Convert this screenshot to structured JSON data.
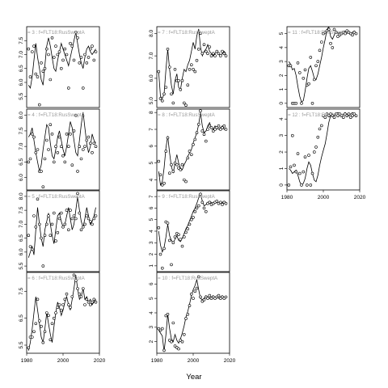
{
  "chart_data": {
    "type": "scatter",
    "xlabel": "Year",
    "xlim": [
      1980,
      2020
    ],
    "x_ticks": [
      "1980",
      "2000",
      "2020"
    ],
    "years": [
      1981,
      1982,
      1983,
      1984,
      1985,
      1986,
      1987,
      1988,
      1989,
      1990,
      1991,
      1992,
      1993,
      1994,
      1995,
      1996,
      1997,
      1998,
      1999,
      2000,
      2001,
      2002,
      2003,
      2004,
      2005,
      2006,
      2007,
      2008,
      2009,
      2010,
      2011,
      2012,
      2013,
      2014,
      2015,
      2016,
      2017,
      2018
    ],
    "panels": [
      {
        "label": "= 3 : f=FLT18:RusSweptA",
        "ylim": [
          5.1,
          8.0
        ],
        "yticks": [
          "5.5",
          "6.0",
          "6.5",
          "7.0",
          "7.5"
        ],
        "fit": [
          5.9,
          5.8,
          6.2,
          6.8,
          7.4,
          6.9,
          6.5,
          6.1,
          5.9,
          6.6,
          7.3,
          7.6,
          7.3,
          6.9,
          6.5,
          6.4,
          6.8,
          7.1,
          7.4,
          7.2,
          7.0,
          6.8,
          6.6,
          6.9,
          7.2,
          7.5,
          7.8,
          7.4,
          7.0,
          6.7,
          6.5,
          6.9,
          7.2,
          7.3,
          7.1,
          7.0,
          7.1,
          7.2
        ],
        "obs": [
          7.2,
          6.2,
          7.1,
          7.3,
          6.3,
          6.2,
          5.2,
          6.7,
          6.4,
          6.5,
          7.2,
          7.0,
          6.1,
          7.6,
          6.9,
          7.3,
          7.0,
          7.1,
          6.5,
          6.8,
          7.2,
          7.0,
          5.8,
          7.4,
          7.3,
          6.8,
          7.8,
          7.6,
          6.7,
          6.9,
          5.8,
          7.0,
          6.7,
          6.9,
          7.2,
          7.3,
          6.8,
          7.1
        ]
      },
      {
        "label": "= 4 : f=FLT18:RusSweptA",
        "ylim": [
          5.6,
          8.2
        ],
        "yticks": [
          "6.0",
          "6.5",
          "7.0",
          "7.5",
          "8.0"
        ],
        "fit": [
          7.3,
          7.4,
          7.6,
          7.2,
          6.8,
          6.5,
          6.2,
          6.4,
          6.9,
          7.3,
          7.7,
          7.6,
          7.1,
          6.7,
          6.6,
          6.9,
          7.3,
          7.5,
          7.2,
          6.9,
          6.7,
          7.0,
          7.4,
          7.8,
          7.6,
          7.2,
          6.8,
          6.7,
          7.2,
          7.7,
          8.1,
          7.6,
          7.1,
          6.8,
          7.0,
          7.4,
          7.2,
          7.1
        ],
        "obs": [
          6.5,
          6.6,
          7.4,
          7.3,
          6.8,
          6.9,
          6.2,
          6.2,
          5.7,
          6.6,
          7.2,
          6.9,
          7.7,
          7.4,
          6.5,
          7.0,
          6.8,
          7.3,
          7.0,
          6.7,
          6.5,
          7.4,
          7.0,
          7.4,
          6.4,
          7.5,
          8.0,
          6.2,
          7.0,
          6.6,
          6.9,
          7.0,
          7.2,
          7.3,
          7.1,
          6.8,
          7.1,
          7.0
        ]
      },
      {
        "label": "= 5 : f=FLT18:RusSweptA",
        "ylim": [
          5.3,
          8.2
        ],
        "yticks": [
          "5.5",
          "6.0",
          "6.5",
          "7.0",
          "7.5",
          "8.0"
        ],
        "fit": [
          5.8,
          6.0,
          6.2,
          5.9,
          6.8,
          7.6,
          7.0,
          6.5,
          6.2,
          6.8,
          7.1,
          7.4,
          7.0,
          6.6,
          6.3,
          6.8,
          7.3,
          7.4,
          7.1,
          6.9,
          7.0,
          7.3,
          7.6,
          7.2,
          6.8,
          7.0,
          7.5,
          8.0,
          7.5,
          7.1,
          6.9,
          7.2,
          7.6,
          7.3,
          7.0,
          7.1,
          7.3,
          7.6
        ],
        "obs": [
          6.6,
          6.2,
          6.1,
          7.3,
          6.9,
          7.9,
          7.0,
          6.5,
          5.5,
          6.6,
          7.0,
          7.3,
          6.6,
          7.0,
          7.4,
          6.4,
          6.7,
          7.2,
          7.4,
          6.9,
          7.0,
          7.5,
          6.8,
          7.5,
          7.2,
          7.3,
          7.2,
          8.1,
          7.4,
          6.8,
          6.9,
          7.0,
          7.3,
          7.2,
          7.1,
          7.0,
          7.2,
          7.3
        ]
      },
      {
        "label": "= 6 : f=FLT18:RusSweptA",
        "ylim": [
          5.2,
          8.2
        ],
        "yticks": [
          "5.5",
          "6.5",
          "7.5"
        ],
        "fit": [
          5.3,
          5.6,
          6.1,
          6.7,
          7.3,
          6.8,
          6.3,
          5.8,
          5.6,
          6.1,
          6.7,
          6.3,
          5.9,
          5.6,
          6.2,
          6.7,
          7.1,
          6.9,
          6.6,
          6.8,
          7.1,
          7.3,
          7.0,
          6.8,
          7.2,
          7.6,
          8.1,
          7.6,
          7.2,
          7.3,
          7.6,
          7.2,
          7.3,
          7.1,
          7.2,
          7.0,
          7.1,
          7.2
        ],
        "obs": [
          5.4,
          5.8,
          5.8,
          6.0,
          6.3,
          7.2,
          6.4,
          6.2,
          5.6,
          6.0,
          6.7,
          6.6,
          5.7,
          6.3,
          6.5,
          6.7,
          6.9,
          7.0,
          6.8,
          7.0,
          7.2,
          7.4,
          7.0,
          6.9,
          7.3,
          8.1,
          7.9,
          7.6,
          7.4,
          7.3,
          7.6,
          7.0,
          7.2,
          7.1,
          7.0,
          7.1,
          7.2,
          7.1
        ]
      },
      {
        "label": "= 7 : f=FLT18:RusSweptA",
        "ylim": [
          4.7,
          8.3
        ],
        "yticks": [
          "5.0",
          "6.0",
          "7.0",
          "8.0"
        ],
        "fit": [
          6.3,
          5.2,
          5.1,
          5.3,
          6.4,
          7.3,
          6.4,
          5.7,
          5.3,
          5.9,
          6.2,
          5.6,
          5.5,
          6.0,
          6.4,
          6.3,
          6.6,
          6.8,
          7.2,
          7.6,
          7.3,
          7.9,
          8.2,
          7.4,
          7.0,
          7.2,
          7.3,
          7.5,
          7.2,
          7.1,
          7.0,
          7.1,
          7.2,
          7.1,
          7.0,
          7.1,
          7.2,
          7.1
        ],
        "obs": [
          6.3,
          5.1,
          5.0,
          5.3,
          5.6,
          7.3,
          6.5,
          5.3,
          4.9,
          6.4,
          5.9,
          5.9,
          5.5,
          5.9,
          4.9,
          4.8,
          5.7,
          6.4,
          6.6,
          6.4,
          6.3,
          6.8,
          7.3,
          8.0,
          7.1,
          7.5,
          7.2,
          7.1,
          7.4,
          7.0,
          7.1,
          7.0,
          7.2,
          7.1,
          7.0,
          7.2,
          7.1,
          7.0
        ]
      },
      {
        "label": "= 8 : f=FLT18:RusSweptA",
        "ylim": [
          3.4,
          8.2
        ],
        "yticks": [
          "4",
          "5",
          "6",
          "7",
          "8"
        ],
        "fit": [
          4.5,
          3.7,
          3.9,
          4.7,
          5.9,
          6.6,
          5.6,
          4.8,
          4.4,
          5.0,
          5.5,
          5.0,
          4.7,
          4.6,
          4.9,
          5.1,
          5.4,
          5.6,
          5.8,
          6.2,
          6.5,
          6.8,
          7.3,
          8.0,
          7.2,
          6.8,
          6.9,
          7.2,
          7.4,
          7.1,
          7.0,
          7.2,
          7.1,
          7.0,
          7.1,
          7.2,
          7.0,
          7.1
        ],
        "obs": [
          5.1,
          4.3,
          3.7,
          3.8,
          5.7,
          6.5,
          4.4,
          4.9,
          4.5,
          5.0,
          4.9,
          4.7,
          4.6,
          4.9,
          4.0,
          3.9,
          5.3,
          5.7,
          5.5,
          6.1,
          6.4,
          6.8,
          7.3,
          8.1,
          6.9,
          6.7,
          6.3,
          7.0,
          7.2,
          7.1,
          6.9,
          7.0,
          7.1,
          7.2,
          7.0,
          7.1,
          7.2,
          7.0
        ]
      },
      {
        "label": "= 9 : f=FLT18:RusSweptA",
        "ylim": [
          0.5,
          7.5
        ],
        "yticks": [
          "1",
          "2",
          "3",
          "4",
          "5",
          "6",
          "7"
        ],
        "fit": [
          4.0,
          2.8,
          2.2,
          2.6,
          3.5,
          4.6,
          3.6,
          3.2,
          3.0,
          3.3,
          3.6,
          3.2,
          3.1,
          3.4,
          3.8,
          4.2,
          4.5,
          4.9,
          5.3,
          5.7,
          6.0,
          6.4,
          6.9,
          7.3,
          6.6,
          6.2,
          6.3,
          6.5,
          6.6,
          6.5,
          6.4,
          6.5,
          6.6,
          6.5,
          6.4,
          6.5,
          6.6,
          6.5
        ],
        "obs": [
          4.3,
          2.0,
          0.8,
          2.5,
          4.8,
          4.7,
          3.2,
          1.1,
          3.0,
          3.5,
          3.8,
          3.7,
          3.3,
          2.7,
          3.5,
          3.9,
          4.2,
          4.6,
          5.0,
          5.2,
          5.7,
          6.0,
          6.2,
          7.2,
          6.5,
          6.0,
          5.7,
          6.4,
          6.5,
          6.3,
          6.4,
          6.5,
          6.6,
          6.4,
          6.5,
          6.3,
          6.5,
          6.4
        ]
      },
      {
        "label": "= 10 : f=FLT18:RusSweptA",
        "ylim": [
          1.2,
          6.8
        ],
        "yticks": [
          "2",
          "3",
          "4",
          "5",
          "6"
        ],
        "fit": [
          2.8,
          2.6,
          2.4,
          1.3,
          2.5,
          3.9,
          2.9,
          2.2,
          2.0,
          2.5,
          2.1,
          1.9,
          2.2,
          2.6,
          3.1,
          3.7,
          4.1,
          4.6,
          5.2,
          5.6,
          5.9,
          6.3,
          5.6,
          5.0,
          4.9,
          5.0,
          5.2,
          5.1,
          5.0,
          5.1,
          5.2,
          5.0,
          5.1,
          5.0,
          5.1,
          5.2,
          5.0,
          5.1
        ],
        "obs": [
          2.9,
          2.8,
          2.9,
          1.4,
          3.8,
          3.9,
          2.1,
          2.0,
          3.3,
          1.7,
          1.6,
          1.5,
          2.1,
          2.0,
          2.5,
          3.6,
          3.9,
          4.5,
          5.3,
          5.0,
          5.5,
          5.7,
          6.5,
          5.1,
          4.8,
          4.9,
          5.1,
          5.0,
          5.2,
          5.0,
          5.1,
          5.0,
          5.1,
          5.2,
          5.0,
          5.1,
          5.0,
          5.1
        ]
      },
      {
        "label": "= 11 : f=FLT18:RusSweptA",
        "ylim": [
          -0.3,
          5.5
        ],
        "yticks": [
          "0",
          "1",
          "2",
          "3",
          "4",
          "5"
        ],
        "fit": [
          3.0,
          2.8,
          2.4,
          2.5,
          2.0,
          1.2,
          0.5,
          0.1,
          0.2,
          0.9,
          1.8,
          2.5,
          2.7,
          2.3,
          1.8,
          1.7,
          2.1,
          2.7,
          3.3,
          4.0,
          4.6,
          5.3,
          5.5,
          4.8,
          4.6,
          4.9,
          5.2,
          5.0,
          5.1,
          5.0,
          5.1,
          5.2,
          5.0,
          5.1,
          5.0,
          5.1,
          5.2,
          5.0
        ],
        "obs": [
          2.7,
          2.7,
          0.0,
          0.0,
          0.0,
          2.9,
          2.2,
          0.0,
          1.8,
          2.4,
          1.3,
          1.4,
          3.3,
          0.0,
          1.7,
          2.7,
          3.0,
          3.8,
          4.4,
          5.0,
          5.1,
          5.2,
          5.3,
          4.3,
          4.0,
          5.3,
          5.1,
          4.8,
          4.9,
          5.0,
          5.1,
          5.0,
          5.2,
          5.1,
          5.0,
          4.9,
          5.1,
          5.0
        ]
      },
      {
        "label": "= 12 : f=FLT18:RusSweptA",
        "ylim": [
          -0.3,
          4.6
        ],
        "yticks": [
          "0",
          "1",
          "2",
          "3",
          "4"
        ],
        "fit": [
          1.0,
          0.9,
          0.7,
          0.8,
          0.9,
          0.6,
          0.2,
          0.0,
          0.1,
          0.4,
          1.0,
          1.4,
          1.2,
          0.7,
          0.3,
          0.2,
          0.6,
          1.2,
          1.7,
          2.1,
          2.5,
          3.1,
          3.8,
          4.2,
          4.3,
          4.2,
          4.3,
          4.4,
          4.3,
          4.2,
          4.3,
          4.4,
          4.3,
          4.2,
          4.3,
          4.4,
          4.3,
          4.2
        ],
        "obs": [
          0.0,
          1.1,
          3.0,
          1.2,
          0.8,
          1.9,
          0.7,
          0.0,
          0.8,
          1.7,
          0.0,
          1.8,
          0.0,
          0.7,
          2.0,
          2.3,
          2.9,
          3.4,
          3.6,
          4.2,
          4.1,
          4.3,
          4.2,
          4.3,
          4.2,
          4.1,
          4.3,
          4.2,
          4.3,
          4.2,
          4.1,
          4.3,
          4.2,
          4.3,
          4.1,
          4.2,
          4.3,
          4.2
        ]
      }
    ]
  }
}
